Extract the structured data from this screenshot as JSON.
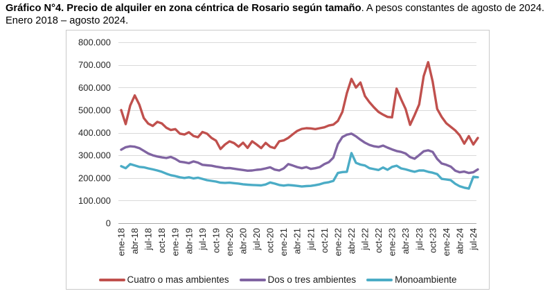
{
  "page": {
    "title_bold": "Gráfico N°4. Precio de alquiler en zona céntrica de Rosario según tamaño",
    "title_rest": ". A pesos constantes de agosto de 2024. Enero 2018 – agosto 2024."
  },
  "chart_data": {
    "type": "line",
    "title": "Precio de alquiler en zona céntrica de Rosario según tamaño",
    "x_unit": "mes",
    "y_unit": "pesos constantes de agosto de 2024",
    "months_count": 80,
    "x_first_month": "ene-18",
    "x_last_month": "ago-24",
    "x_tick_every": 3,
    "x_tick_labels": [
      "ene-18",
      "abr-18",
      "jul-18",
      "oct-18",
      "ene-19",
      "abr-19",
      "jul-19",
      "oct-19",
      "ene-20",
      "abr-20",
      "jul-20",
      "oct-20",
      "ene-21",
      "abr-21",
      "jul-21",
      "oct-21",
      "ene-22",
      "abr-22",
      "jul-22",
      "oct-22",
      "ene-23",
      "abr-23",
      "jul-23",
      "oct-23",
      "ene-24",
      "abr-24",
      "jul-24"
    ],
    "ylim": [
      0,
      800000
    ],
    "y_ticks": [
      {
        "value": 0,
        "label": "0"
      },
      {
        "value": 100000,
        "label": "100.000"
      },
      {
        "value": 200000,
        "label": "200.000"
      },
      {
        "value": 300000,
        "label": "300.000"
      },
      {
        "value": 400000,
        "label": "400.000"
      },
      {
        "value": 500000,
        "label": "500.000"
      },
      {
        "value": 600000,
        "label": "600.000"
      },
      {
        "value": 700000,
        "label": "700.000"
      },
      {
        "value": 800000,
        "label": "800.000"
      }
    ],
    "grid": "horizontal",
    "legend_position": "bottom",
    "style": {
      "gridline_color": "#d9d9d9",
      "axis_color": "#a6a6a6",
      "label_color": "#262626",
      "plot_border_color": "#c9c9c9"
    },
    "series": [
      {
        "name": "Cuatro o mas ambientes",
        "color": "#C0504D",
        "values": [
          500000,
          438000,
          520000,
          565000,
          525000,
          465000,
          440000,
          430000,
          448000,
          441000,
          422000,
          412000,
          416000,
          396000,
          392000,
          402000,
          386000,
          380000,
          403000,
          396000,
          377000,
          365000,
          328000,
          348000,
          362000,
          354000,
          338000,
          356000,
          333000,
          362000,
          348000,
          332000,
          355000,
          338000,
          332000,
          362000,
          366000,
          377000,
          393000,
          408000,
          417000,
          420000,
          419000,
          416000,
          420000,
          424000,
          432000,
          436000,
          452000,
          492000,
          575000,
          638000,
          600000,
          622000,
          562000,
          535000,
          512000,
          492000,
          480000,
          470000,
          468000,
          595000,
          548000,
          505000,
          435000,
          478000,
          525000,
          650000,
          712000,
          626000,
          505000,
          470000,
          442000,
          426000,
          410000,
          388000,
          352000,
          385000,
          348000,
          377000
        ]
      },
      {
        "name": "Dos o tres ambientes",
        "color": "#8064A2",
        "values": [
          325000,
          336000,
          340000,
          338000,
          332000,
          320000,
          308000,
          300000,
          295000,
          291000,
          288000,
          293000,
          284000,
          272000,
          269000,
          265000,
          273000,
          268000,
          258000,
          256000,
          254000,
          250000,
          247000,
          243000,
          244000,
          241000,
          238000,
          235000,
          232000,
          233000,
          236000,
          238000,
          242000,
          247000,
          237000,
          233000,
          242000,
          261000,
          255000,
          248000,
          243000,
          248000,
          240000,
          243000,
          248000,
          261000,
          270000,
          290000,
          350000,
          381000,
          391000,
          396000,
          384000,
          369000,
          356000,
          346000,
          340000,
          337000,
          343000,
          334000,
          326000,
          319000,
          315000,
          308000,
          292000,
          285000,
          301000,
          318000,
          322000,
          315000,
          284000,
          264000,
          258000,
          250000,
          232000,
          225000,
          228000,
          222000,
          225000,
          238000
        ]
      },
      {
        "name": "Monoambiente",
        "color": "#4BACC6",
        "values": [
          252000,
          243000,
          261000,
          255000,
          249000,
          247000,
          242000,
          238000,
          233000,
          227000,
          219000,
          212000,
          208000,
          203000,
          200000,
          203000,
          198000,
          201000,
          196000,
          190000,
          187000,
          184000,
          179000,
          178000,
          179000,
          177000,
          175000,
          172000,
          170000,
          169000,
          168000,
          167000,
          171000,
          180000,
          175000,
          169000,
          166000,
          169000,
          167000,
          165000,
          162000,
          164000,
          165000,
          168000,
          172000,
          178000,
          181000,
          187000,
          222000,
          226000,
          227000,
          310000,
          267000,
          259000,
          255000,
          243000,
          239000,
          235000,
          246000,
          236000,
          249000,
          254000,
          242000,
          238000,
          232000,
          227000,
          233000,
          233000,
          227000,
          223000,
          217000,
          196000,
          193000,
          190000,
          174000,
          163000,
          157000,
          153000,
          205000,
          203000
        ]
      }
    ]
  }
}
